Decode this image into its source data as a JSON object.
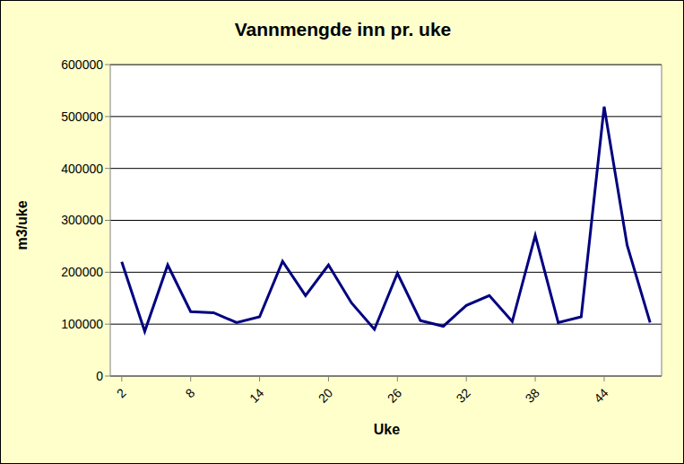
{
  "chart_data": {
    "type": "line",
    "title": "Vannmengde inn pr. uke",
    "x_label": "Uke",
    "y_label": "m3/uke",
    "x": [
      2,
      4,
      6,
      8,
      10,
      12,
      14,
      16,
      18,
      20,
      22,
      24,
      26,
      28,
      30,
      32,
      34,
      36,
      38,
      40,
      42,
      44,
      46,
      48
    ],
    "values": [
      220000,
      86000,
      214000,
      124000,
      122000,
      103000,
      114000,
      221000,
      155000,
      214000,
      141000,
      90000,
      198000,
      107000,
      96000,
      136000,
      155000,
      105000,
      271000,
      103000,
      114000,
      519000,
      252000,
      103000
    ],
    "color": "#000080",
    "xlim": [
      1,
      49
    ],
    "xticks": [
      2,
      8,
      14,
      20,
      26,
      32,
      38,
      44
    ],
    "ylim": [
      0,
      600000
    ],
    "yticks": [
      0,
      100000,
      200000,
      300000,
      400000,
      500000,
      600000
    ],
    "grid": true
  }
}
